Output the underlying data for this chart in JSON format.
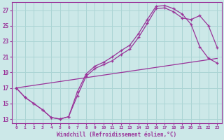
{
  "xlabel": "Windchill (Refroidissement éolien,°C)",
  "bg_color": "#cce8e8",
  "line_color": "#993399",
  "grid_color": "#aad4d4",
  "xlim": [
    -0.5,
    23.5
  ],
  "ylim": [
    12.5,
    28.0
  ],
  "xticks": [
    0,
    1,
    2,
    3,
    4,
    5,
    6,
    7,
    8,
    9,
    10,
    11,
    12,
    13,
    14,
    15,
    16,
    17,
    18,
    19,
    20,
    21,
    22,
    23
  ],
  "yticks": [
    13,
    15,
    17,
    19,
    21,
    23,
    25,
    27
  ],
  "line1_x": [
    0,
    1,
    2,
    3,
    4,
    5,
    6,
    7,
    8,
    9,
    10,
    11,
    12,
    13,
    14,
    15,
    16,
    17,
    18,
    19,
    20,
    21,
    22,
    23
  ],
  "line1_y": [
    17.0,
    15.8,
    15.0,
    14.2,
    13.2,
    13.0,
    13.3,
    16.5,
    18.8,
    19.8,
    20.3,
    21.0,
    21.8,
    22.5,
    24.0,
    25.8,
    27.5,
    27.6,
    27.2,
    26.5,
    25.2,
    22.3,
    20.8,
    20.2
  ],
  "line2_x": [
    0,
    1,
    2,
    3,
    4,
    5,
    6,
    7,
    8,
    9,
    10,
    11,
    12,
    13,
    14,
    15,
    16,
    17,
    18,
    19,
    20,
    21,
    22,
    23
  ],
  "line2_y": [
    17.0,
    15.8,
    15.0,
    14.2,
    13.2,
    13.0,
    13.3,
    16.0,
    18.5,
    19.5,
    20.0,
    20.5,
    21.3,
    22.0,
    23.5,
    25.3,
    27.2,
    27.3,
    26.8,
    26.0,
    25.8,
    26.3,
    25.0,
    22.2
  ],
  "line3_x": [
    0,
    23
  ],
  "line3_y": [
    17.0,
    20.8
  ]
}
